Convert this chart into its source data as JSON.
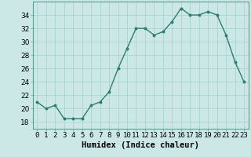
{
  "x": [
    0,
    1,
    2,
    3,
    4,
    5,
    6,
    7,
    8,
    9,
    10,
    11,
    12,
    13,
    14,
    15,
    16,
    17,
    18,
    19,
    20,
    21,
    22,
    23
  ],
  "y": [
    21,
    20,
    20.5,
    18.5,
    18.5,
    18.5,
    20.5,
    21,
    22.5,
    26,
    29,
    32,
    32,
    31,
    31.5,
    33,
    35,
    34,
    34,
    34.5,
    34,
    31,
    27,
    24
  ],
  "line_color": "#2e7d6e",
  "marker": "o",
  "marker_size": 1.8,
  "line_width": 1.0,
  "xlabel": "Humidex (Indice chaleur)",
  "ylim": [
    17,
    36
  ],
  "xlim": [
    -0.5,
    23.5
  ],
  "yticks": [
    18,
    20,
    22,
    24,
    26,
    28,
    30,
    32,
    34
  ],
  "xtick_labels": [
    "0",
    "1",
    "2",
    "3",
    "4",
    "5",
    "6",
    "7",
    "8",
    "9",
    "10",
    "11",
    "12",
    "13",
    "14",
    "15",
    "16",
    "17",
    "18",
    "19",
    "20",
    "21",
    "22",
    "23"
  ],
  "bg_color": "#cce8e6",
  "grid_color": "#aad4d0",
  "xlabel_fontsize": 7.5,
  "tick_fontsize": 6.5
}
